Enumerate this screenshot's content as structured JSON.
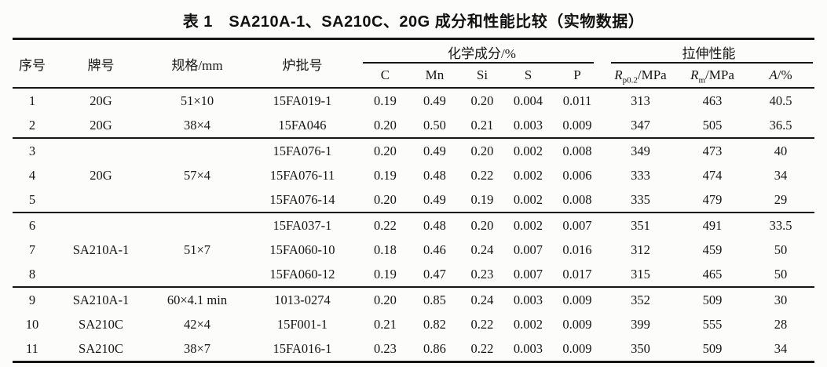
{
  "table": {
    "title": "表 1　SA210A-1、SA210C、20G 成分和性能比较（实物数据）",
    "header": {
      "seq": "序号",
      "grade": "牌号",
      "spec": "规格/mm",
      "heat": "炉批号",
      "chem_group": "化学成分/%",
      "tensile_group": "拉伸性能",
      "chem_cols": [
        "C",
        "Mn",
        "Si",
        "S",
        "P"
      ],
      "tensile_cols": [
        {
          "sym": "R",
          "sub": "p0.2",
          "unit": "/MPa"
        },
        {
          "sym": "R",
          "sub": "m",
          "unit": "/MPa"
        },
        {
          "sym": "A",
          "sub": "",
          "unit": "/%"
        }
      ]
    },
    "row_groups": [
      {
        "rows": [
          {
            "seq": "1",
            "grade": "20G",
            "spec": "51×10",
            "heat": "15FA019-1",
            "chem": [
              "0.19",
              "0.49",
              "0.20",
              "0.004",
              "0.011"
            ],
            "tensile": [
              "313",
              "463",
              "40.5"
            ]
          },
          {
            "seq": "2",
            "grade": "20G",
            "spec": "38×4",
            "heat": "15FA046",
            "chem": [
              "0.20",
              "0.50",
              "0.21",
              "0.003",
              "0.009"
            ],
            "tensile": [
              "347",
              "505",
              "36.5"
            ]
          }
        ]
      },
      {
        "merged": {
          "grade": "20G",
          "spec": "57×4"
        },
        "rows": [
          {
            "seq": "3",
            "heat": "15FA076-1",
            "chem": [
              "0.20",
              "0.49",
              "0.20",
              "0.002",
              "0.008"
            ],
            "tensile": [
              "349",
              "473",
              "40"
            ]
          },
          {
            "seq": "4",
            "heat": "15FA076-11",
            "chem": [
              "0.19",
              "0.48",
              "0.22",
              "0.002",
              "0.006"
            ],
            "tensile": [
              "333",
              "474",
              "34"
            ]
          },
          {
            "seq": "5",
            "heat": "15FA076-14",
            "chem": [
              "0.20",
              "0.49",
              "0.19",
              "0.002",
              "0.008"
            ],
            "tensile": [
              "335",
              "479",
              "29"
            ]
          }
        ]
      },
      {
        "merged": {
          "grade": "SA210A-1",
          "spec": "51×7"
        },
        "rows": [
          {
            "seq": "6",
            "heat": "15FA037-1",
            "chem": [
              "0.22",
              "0.48",
              "0.20",
              "0.002",
              "0.007"
            ],
            "tensile": [
              "351",
              "491",
              "33.5"
            ]
          },
          {
            "seq": "7",
            "heat": "15FA060-10",
            "chem": [
              "0.18",
              "0.46",
              "0.24",
              "0.007",
              "0.016"
            ],
            "tensile": [
              "312",
              "459",
              "50"
            ]
          },
          {
            "seq": "8",
            "heat": "15FA060-12",
            "chem": [
              "0.19",
              "0.47",
              "0.23",
              "0.007",
              "0.017"
            ],
            "tensile": [
              "315",
              "465",
              "50"
            ]
          }
        ]
      },
      {
        "rows": [
          {
            "seq": "9",
            "grade": "SA210A-1",
            "spec": "60×4.1 min",
            "heat": "1013-0274",
            "chem": [
              "0.20",
              "0.85",
              "0.24",
              "0.003",
              "0.009"
            ],
            "tensile": [
              "352",
              "509",
              "30"
            ]
          },
          {
            "seq": "10",
            "grade": "SA210C",
            "spec": "42×4",
            "heat": "15F001-1",
            "chem": [
              "0.21",
              "0.82",
              "0.22",
              "0.002",
              "0.009"
            ],
            "tensile": [
              "399",
              "555",
              "28"
            ]
          },
          {
            "seq": "11",
            "grade": "SA210C",
            "spec": "38×7",
            "heat": "15FA016-1",
            "chem": [
              "0.23",
              "0.86",
              "0.22",
              "0.003",
              "0.009"
            ],
            "tensile": [
              "350",
              "509",
              "34"
            ]
          }
        ]
      }
    ],
    "ink_color": "#151515",
    "paper_color": "#fcfcfb"
  }
}
